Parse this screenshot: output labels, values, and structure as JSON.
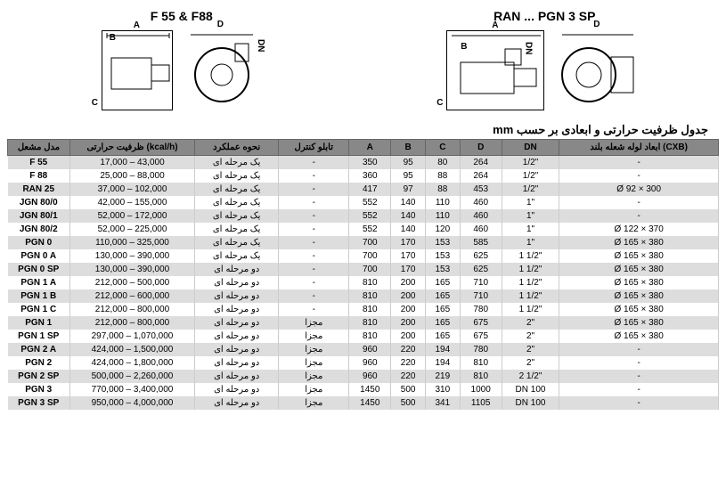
{
  "diagram_titles": {
    "left": "F 55 & F88",
    "right": "RAN ... PGN 3 SP"
  },
  "dim_labels": [
    "A",
    "B",
    "C",
    "D",
    "DN"
  ],
  "table_title": "جدول ظرفیت حرارتی و ابعادی بر حسب mm",
  "headers": {
    "model": "مدل مشعل",
    "capacity": "ظرفیت حرارتی (kcal/h)",
    "mode": "نحوه عملکرد",
    "panel": "تابلو کنترل",
    "a": "A",
    "b": "B",
    "c": "C",
    "d": "D",
    "dn": "DN",
    "tube": "ابعاد لوله شعله بلند (CXB)"
  },
  "rows": [
    {
      "model": "F 55",
      "cap": "17,000 – 43,000",
      "mode": "یک مرحله ای",
      "panel": "-",
      "a": "350",
      "b": "95",
      "c": "80",
      "d": "264",
      "dn": "1/2\"",
      "tube": "-"
    },
    {
      "model": "F 88",
      "cap": "25,000 – 88,000",
      "mode": "یک مرحله ای",
      "panel": "-",
      "a": "360",
      "b": "95",
      "c": "88",
      "d": "264",
      "dn": "1/2\"",
      "tube": "-"
    },
    {
      "model": "RAN 25",
      "cap": "37,000 – 102,000",
      "mode": "یک مرحله ای",
      "panel": "-",
      "a": "417",
      "b": "97",
      "c": "88",
      "d": "453",
      "dn": "1/2\"",
      "tube": "Ø 92 × 300"
    },
    {
      "model": "JGN 80/0",
      "cap": "42,000 – 155,000",
      "mode": "یک مرحله ای",
      "panel": "-",
      "a": "552",
      "b": "140",
      "c": "110",
      "d": "460",
      "dn": "1\"",
      "tube": "-"
    },
    {
      "model": "JGN 80/1",
      "cap": "52,000 – 172,000",
      "mode": "یک مرحله ای",
      "panel": "-",
      "a": "552",
      "b": "140",
      "c": "110",
      "d": "460",
      "dn": "1\"",
      "tube": "-"
    },
    {
      "model": "JGN 80/2",
      "cap": "52,000 – 225,000",
      "mode": "یک مرحله ای",
      "panel": "-",
      "a": "552",
      "b": "140",
      "c": "120",
      "d": "460",
      "dn": "1\"",
      "tube": "Ø 122 × 370"
    },
    {
      "model": "PGN 0",
      "cap": "110,000 – 325,000",
      "mode": "یک مرحله ای",
      "panel": "-",
      "a": "700",
      "b": "170",
      "c": "153",
      "d": "585",
      "dn": "1\"",
      "tube": "Ø 165 × 380"
    },
    {
      "model": "PGN 0 A",
      "cap": "130,000 – 390,000",
      "mode": "یک مرحله ای",
      "panel": "-",
      "a": "700",
      "b": "170",
      "c": "153",
      "d": "625",
      "dn": "1 1/2\"",
      "tube": "Ø 165 × 380"
    },
    {
      "model": "PGN 0 SP",
      "cap": "130,000 – 390,000",
      "mode": "دو مرحله ای",
      "panel": "-",
      "a": "700",
      "b": "170",
      "c": "153",
      "d": "625",
      "dn": "1 1/2\"",
      "tube": "Ø 165 × 380"
    },
    {
      "model": "PGN 1 A",
      "cap": "212,000 – 500,000",
      "mode": "دو مرحله ای",
      "panel": "-",
      "a": "810",
      "b": "200",
      "c": "165",
      "d": "710",
      "dn": "1 1/2\"",
      "tube": "Ø 165 × 380"
    },
    {
      "model": "PGN 1 B",
      "cap": "212,000 – 600,000",
      "mode": "دو مرحله ای",
      "panel": "-",
      "a": "810",
      "b": "200",
      "c": "165",
      "d": "710",
      "dn": "1 1/2\"",
      "tube": "Ø 165 × 380"
    },
    {
      "model": "PGN 1 C",
      "cap": "212,000 – 800,000",
      "mode": "دو مرحله ای",
      "panel": "-",
      "a": "810",
      "b": "200",
      "c": "165",
      "d": "780",
      "dn": "1 1/2\"",
      "tube": "Ø 165 × 380"
    },
    {
      "model": "PGN 1",
      "cap": "212,000 – 800,000",
      "mode": "دو مرحله ای",
      "panel": "مجزا",
      "a": "810",
      "b": "200",
      "c": "165",
      "d": "675",
      "dn": "2\"",
      "tube": "Ø 165 × 380"
    },
    {
      "model": "PGN 1 SP",
      "cap": "297,000 – 1,070,000",
      "mode": "دو مرحله ای",
      "panel": "مجزا",
      "a": "810",
      "b": "200",
      "c": "165",
      "d": "675",
      "dn": "2\"",
      "tube": "Ø 165 × 380"
    },
    {
      "model": "PGN 2 A",
      "cap": "424,000 – 1,500,000",
      "mode": "دو مرحله ای",
      "panel": "مجزا",
      "a": "960",
      "b": "220",
      "c": "194",
      "d": "780",
      "dn": "2\"",
      "tube": "-"
    },
    {
      "model": "PGN 2",
      "cap": "424,000 – 1,800,000",
      "mode": "دو مرحله ای",
      "panel": "مجزا",
      "a": "960",
      "b": "220",
      "c": "194",
      "d": "810",
      "dn": "2\"",
      "tube": "-"
    },
    {
      "model": "PGN 2 SP",
      "cap": "500,000 – 2,260,000",
      "mode": "دو مرحله ای",
      "panel": "مجزا",
      "a": "960",
      "b": "220",
      "c": "219",
      "d": "810",
      "dn": "2 1/2\"",
      "tube": "-"
    },
    {
      "model": "PGN 3",
      "cap": "770,000 – 3,400,000",
      "mode": "دو مرحله ای",
      "panel": "مجزا",
      "a": "1450",
      "b": "500",
      "c": "310",
      "d": "1000",
      "dn": "DN 100",
      "tube": "-"
    },
    {
      "model": "PGN 3 SP",
      "cap": "950,000 – 4,000,000",
      "mode": "دو مرحله ای",
      "panel": "مجزا",
      "a": "1450",
      "b": "500",
      "c": "341",
      "d": "1105",
      "dn": "DN 100",
      "tube": "-"
    }
  ],
  "colors": {
    "header_bg": "#888888",
    "row_odd": "#dddddd",
    "row_even": "#ffffff",
    "border": "#666666"
  }
}
